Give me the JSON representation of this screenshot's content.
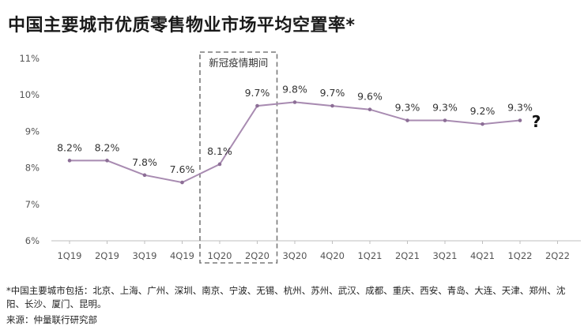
{
  "title": "中国主要城市优质零售物业市场平均空置率*",
  "chart_data": {
    "type": "line",
    "categories": [
      "1Q19",
      "2Q19",
      "3Q19",
      "4Q19",
      "1Q20",
      "2Q20",
      "3Q20",
      "4Q20",
      "1Q21",
      "2Q21",
      "3Q21",
      "4Q21",
      "1Q22",
      "2Q22"
    ],
    "values": [
      8.2,
      8.2,
      7.8,
      7.6,
      8.1,
      9.7,
      9.8,
      9.7,
      9.6,
      9.3,
      9.3,
      9.2,
      9.3,
      null
    ],
    "data_labels": [
      "8.2%",
      "8.2%",
      "7.8%",
      "7.6%",
      "8.1%",
      "9.7%",
      "9.8%",
      "9.7%",
      "9.6%",
      "9.3%",
      "9.3%",
      "9.2%",
      "9.3%",
      "?"
    ],
    "ylim": [
      6,
      11
    ],
    "yticks": [
      6,
      7,
      8,
      9,
      10,
      11
    ],
    "ytick_labels": [
      "6%",
      "7%",
      "8%",
      "9%",
      "10%",
      "11%"
    ],
    "line_color": "#a88bb1",
    "highlight": {
      "label": "新冠疫情期间",
      "from": "1Q20",
      "to": "2Q20"
    },
    "grid": false
  },
  "footnote": "*中国主要城市包括：北京、上海、广州、深圳、南京、宁波、无锡、杭州、苏州、武汉、成都、重庆、西安、青岛、大连、天津、郑州、沈阳、长沙、厦门、昆明。",
  "source": "来源：仲量联行研究部"
}
